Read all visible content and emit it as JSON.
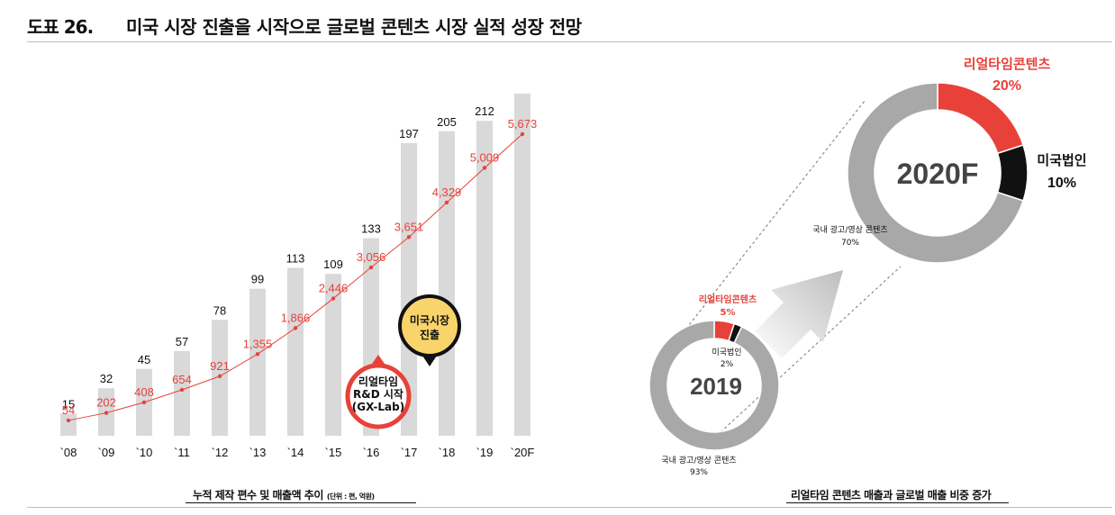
{
  "header": {
    "figure_number": "도표 26.",
    "title": "미국 시장 진출을 시작으로 글로벌 콘텐츠 시장 실적 성장 전망"
  },
  "colors": {
    "bar": "#d9d9d9",
    "line": "#e8413a",
    "pie_grey": "#a8a8a8",
    "pie_red": "#e8413a",
    "pie_black": "#111111",
    "callout_yellow": "#f9d46b"
  },
  "left_caption": {
    "text": "누적 제작 편수 및 매출액 추이",
    "unit": "(단위 : 편, 억원)"
  },
  "right_caption": {
    "text": "리얼타임 콘텐츠 매출과 글로벌 매출 비중 증가"
  },
  "callouts": [
    {
      "lines": [
        "리얼타임",
        "R&D 시작",
        "(GX-Lab)"
      ],
      "year": "`16"
    },
    {
      "lines": [
        "미국시장",
        "진출"
      ],
      "year": "`17"
    }
  ],
  "chart_data": [
    {
      "type": "bar",
      "categories": [
        "`08",
        "`09",
        "`10",
        "`11",
        "`12",
        "`13",
        "`14",
        "`15",
        "`16",
        "`17",
        "`18",
        "`19",
        "`20F"
      ],
      "series": [
        {
          "values": [
            15,
            32,
            45,
            57,
            78,
            99,
            113,
            109,
            133,
            197,
            205,
            212,
            null
          ]
        },
        {
          "values": [
            54,
            202,
            408,
            654,
            921,
            1355,
            1866,
            2446,
            3056,
            3651,
            4329,
            5009,
            5673
          ]
        }
      ],
      "bar_labels": [
        "15",
        "32",
        "45",
        "57",
        "78",
        "99",
        "113",
        "109",
        "133",
        "197",
        "205",
        "212",
        ""
      ],
      "line_labels": [
        "54",
        "202",
        "408",
        "654",
        "921",
        "1,355",
        "1,866",
        "2,446",
        "3,056",
        "3,651",
        "4,329",
        "5,009",
        "5,673"
      ]
    },
    {
      "type": "pie",
      "center_label": "2019",
      "slices": [
        {
          "label": "리얼타임콘텐츠",
          "value": 5,
          "value_label": "5%"
        },
        {
          "label": "미국법인",
          "value": 2,
          "value_label": "2%"
        },
        {
          "label": "국내 광고/영상 콘텐츠",
          "value": 93,
          "value_label": "93%"
        }
      ]
    },
    {
      "type": "pie",
      "center_label": "2020F",
      "slices": [
        {
          "label": "리얼타임콘텐츠",
          "value": 20,
          "value_label": "20%"
        },
        {
          "label": "미국법인",
          "value": 10,
          "value_label": "10%"
        },
        {
          "label": "국내 광고/영상 콘텐츠",
          "value": 70,
          "value_label": "70%"
        }
      ]
    }
  ]
}
